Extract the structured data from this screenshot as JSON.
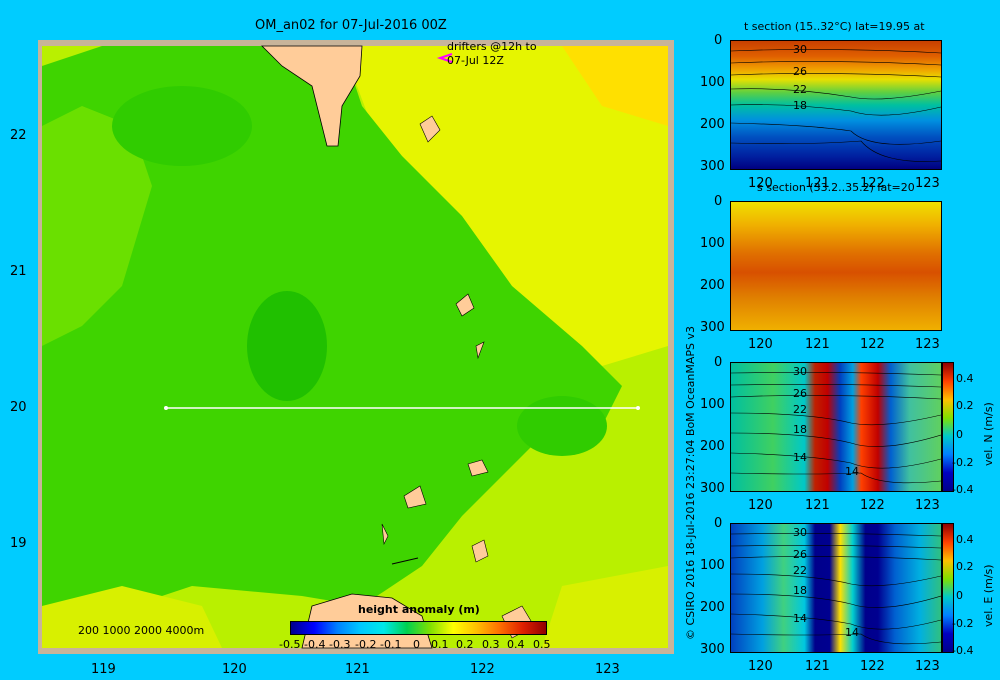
{
  "main": {
    "title": "OM_an02 for 07-Jul-2016 00Z",
    "drifters_line1": "drifters @12h to",
    "drifters_line2": "07-Jul 12Z",
    "x_ticks": [
      "119",
      "120",
      "121",
      "122",
      "123"
    ],
    "y_ticks": [
      "22",
      "21",
      "20",
      "19"
    ],
    "depth_legend": "200  1000  2000  4000m",
    "colorbar_title": "height anomaly  (m)",
    "colorbar_ticks": [
      "-0.5",
      "-0.4",
      "-0.3",
      "-0.2",
      "-0.1",
      "0",
      "0.1",
      "0.2",
      "0.3",
      "0.4",
      "0.5"
    ]
  },
  "credit": "© CSIRO 2016   18-Jul-2016 23:27:04 BoM OceanMAPS v3",
  "sections": {
    "t": {
      "title": "t section (15..32°C) lat=19.95 at",
      "contours": [
        "30",
        "26",
        "22",
        "18"
      ]
    },
    "s": {
      "title": "s section (33.2..35.2) lat=20"
    },
    "n": {
      "contours": [
        "30",
        "26",
        "22",
        "18",
        "14",
        "14"
      ],
      "colorbar_label": "vel. N (m/s)",
      "cb_ticks": [
        "0.4",
        "0.2",
        "0",
        "-0.2",
        "-0.4"
      ]
    },
    "e": {
      "contours": [
        "30",
        "26",
        "22",
        "18",
        "14",
        "14"
      ],
      "colorbar_label": "vel. E (m/s)",
      "cb_ticks": [
        "0.4",
        "0.2",
        "0",
        "-0.2",
        "-0.4"
      ]
    },
    "depth_ticks": [
      "0",
      "100",
      "200",
      "300"
    ],
    "lon_ticks": [
      "120",
      "121",
      "122",
      "123"
    ]
  },
  "chart_data": [
    {
      "type": "heatmap",
      "title": "OM_an02 for 07-Jul-2016 00Z",
      "xlabel": "",
      "ylabel": "",
      "xlim": [
        118.5,
        123.5
      ],
      "ylim": [
        18.3,
        22.7
      ],
      "colorbar": "height anomaly  (m)",
      "crange": [
        -0.5,
        0.5
      ],
      "section_line": {
        "lat": 20,
        "lon": [
          119.5,
          123.2
        ]
      }
    },
    {
      "type": "heatmap",
      "title": "t section (15..32°C) lat=19.95 at",
      "x": [
        120,
        121,
        122,
        123
      ],
      "y_depth": [
        0,
        100,
        200,
        300
      ],
      "contour_labels": [
        30,
        26,
        22,
        18
      ]
    },
    {
      "type": "heatmap",
      "title": "s section (33.2..35.2) lat=20",
      "x": [
        120,
        121,
        122,
        123
      ],
      "y_depth": [
        0,
        100,
        200,
        300
      ]
    },
    {
      "type": "heatmap",
      "title": "vel. N (m/s)",
      "x": [
        120,
        121,
        122,
        123
      ],
      "y_depth": [
        0,
        100,
        200,
        300
      ],
      "crange": [
        -0.4,
        0.4
      ]
    },
    {
      "type": "heatmap",
      "title": "vel. E (m/s)",
      "x": [
        120,
        121,
        122,
        123
      ],
      "y_depth": [
        0,
        100,
        200,
        300
      ],
      "crange": [
        -0.4,
        0.4
      ]
    }
  ]
}
